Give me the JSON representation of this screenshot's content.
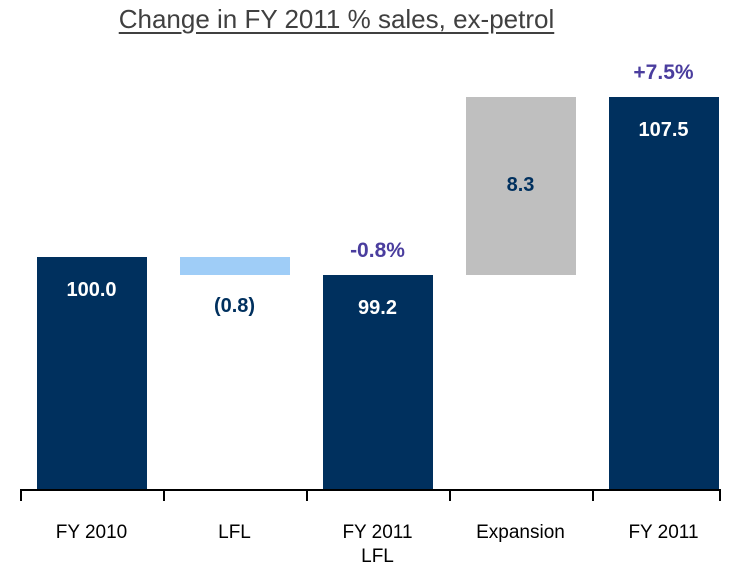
{
  "chart_data": {
    "type": "waterfall",
    "title": "Change in FY 2011 % sales, ex-petrol",
    "categories": [
      "FY 2010",
      "LFL",
      "FY 2011\nLFL",
      "Expansion",
      "FY 2011"
    ],
    "values": [
      100.0,
      -0.8,
      99.2,
      8.3,
      107.5
    ],
    "value_labels": [
      "100.0",
      "(0.8)",
      "99.2",
      "8.3",
      "107.5"
    ],
    "totals": [
      true,
      false,
      true,
      false,
      true
    ],
    "colors": [
      "#00305e",
      "#9fcdf7",
      "#00305e",
      "#bfbfbf",
      "#00305e"
    ],
    "annotations": [
      "-0.8%",
      "+7.5%"
    ],
    "ylim": [
      89.2,
      112
    ]
  }
}
